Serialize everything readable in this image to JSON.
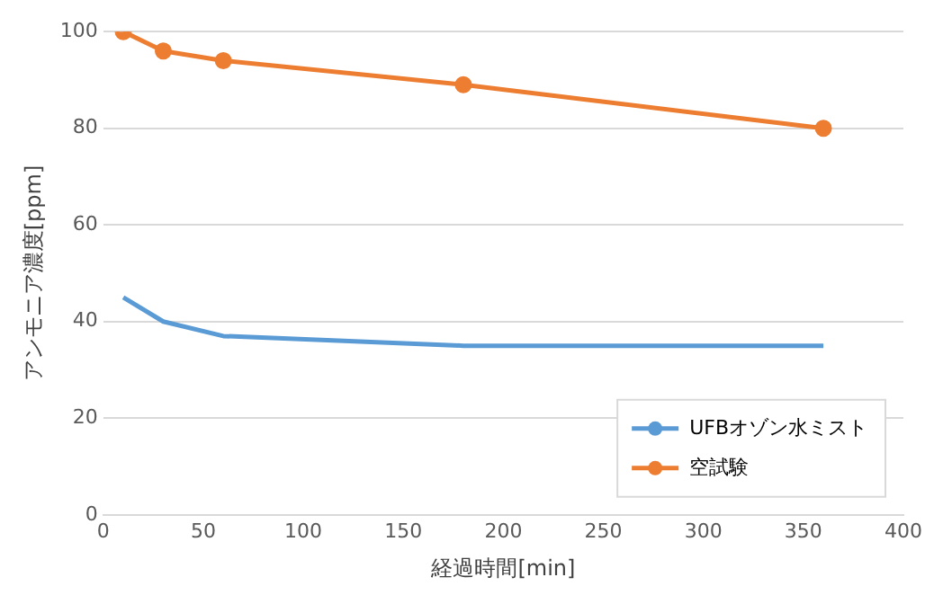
{
  "chart_data": {
    "type": "line",
    "xlabel": "経過時間[min]",
    "ylabel": "アンモニア濃度[ppm]",
    "x": [
      10,
      30,
      60,
      180,
      360
    ],
    "series": [
      {
        "name": "UFBオゾン水ミスト",
        "color": "#5b9bd5",
        "values": [
          45,
          40,
          37,
          35,
          35
        ],
        "marker": "none"
      },
      {
        "name": "空試験",
        "color": "#ed7d31",
        "values": [
          100,
          96,
          94,
          89,
          80
        ],
        "marker": "circle"
      }
    ],
    "xlim": [
      0,
      400
    ],
    "xticks": [
      0,
      50,
      100,
      150,
      200,
      250,
      300,
      350,
      400
    ],
    "ylim": [
      0,
      100
    ],
    "yticks": [
      0,
      20,
      40,
      60,
      80,
      100
    ],
    "grid": "y",
    "legend": "bottom right",
    "line_style": "solid"
  }
}
